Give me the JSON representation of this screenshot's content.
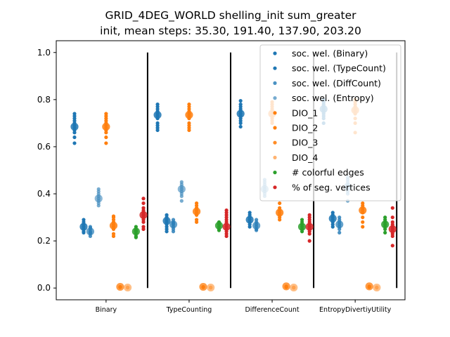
{
  "chart_data": {
    "type": "scatter",
    "title": "GRID_4DEG_WORLD shelling_init sum_greater",
    "subtitle": "init, mean steps: 35.30, 191.40, 137.90, 203.20",
    "xlabel": "",
    "ylabel": "",
    "ylim": [
      0,
      1
    ],
    "yticks": [
      "0.0",
      "0.2",
      "0.4",
      "0.6",
      "0.8",
      "1.0"
    ],
    "grid": false,
    "legend_position": "top-right",
    "categories": [
      "Binary",
      "TypeCounting",
      "DifferenceCount",
      "EntropyDivertiyUtility"
    ],
    "separators_x": [
      1.5,
      2.5,
      3.5,
      4.5
    ],
    "series": [
      {
        "name": "soc. wel. (Binary)",
        "color": "#1f77b4",
        "alpha": 1.0,
        "groups": [
          {
            "x": 1,
            "offset": -0.38,
            "mean": 0.685,
            "points": [
              0.74,
              0.73,
              0.72,
              0.71,
              0.7,
              0.69,
              0.68,
              0.67,
              0.66,
              0.64,
              0.615
            ]
          },
          {
            "x": 2,
            "offset": -0.38,
            "mean": 0.735,
            "points": [
              0.78,
              0.77,
              0.76,
              0.75,
              0.74,
              0.73,
              0.72,
              0.7,
              0.69,
              0.68,
              0.67
            ]
          },
          {
            "x": 3,
            "offset": -0.38,
            "mean": 0.74,
            "points": [
              0.795,
              0.78,
              0.77,
              0.76,
              0.75,
              0.74,
              0.73,
              0.72,
              0.71,
              0.7,
              0.685
            ]
          },
          {
            "x": 4,
            "offset": -0.38,
            "mean": 0.76,
            "points": [
              0.8,
              0.79,
              0.78,
              0.77,
              0.76,
              0.75,
              0.74,
              0.73,
              0.72,
              0.7
            ]
          }
        ]
      },
      {
        "name": "soc. wel. (TypeCount)",
        "color": "#1f77b4",
        "alpha": 1.0,
        "groups": [
          {
            "x": 1,
            "offset": -0.27,
            "mean": 0.26,
            "points": [
              0.29,
              0.28,
              0.27,
              0.26,
              0.25,
              0.24,
              0.235
            ]
          },
          {
            "x": 2,
            "offset": -0.27,
            "mean": 0.285,
            "points": [
              0.31,
              0.3,
              0.29,
              0.28,
              0.27,
              0.26,
              0.25,
              0.24
            ]
          },
          {
            "x": 3,
            "offset": -0.27,
            "mean": 0.29,
            "points": [
              0.32,
              0.31,
              0.3,
              0.29,
              0.28,
              0.27,
              0.26
            ]
          },
          {
            "x": 4,
            "offset": -0.27,
            "mean": 0.295,
            "points": [
              0.32,
              0.31,
              0.3,
              0.29,
              0.28,
              0.27,
              0.26
            ]
          }
        ]
      },
      {
        "name": "soc. wel. (DiffCount)",
        "color": "#2b7fb8",
        "alpha": 0.85,
        "groups": [
          {
            "x": 1,
            "offset": -0.19,
            "mean": 0.24,
            "points": [
              0.26,
              0.255,
              0.25,
              0.24,
              0.235,
              0.23,
              0.22
            ]
          },
          {
            "x": 2,
            "offset": -0.19,
            "mean": 0.27,
            "points": [
              0.29,
              0.28,
              0.275,
              0.27,
              0.26,
              0.25,
              0.24
            ]
          },
          {
            "x": 3,
            "offset": -0.19,
            "mean": 0.265,
            "points": [
              0.29,
              0.28,
              0.27,
              0.26,
              0.25,
              0.245
            ]
          },
          {
            "x": 4,
            "offset": -0.19,
            "mean": 0.27,
            "points": [
              0.3,
              0.29,
              0.28,
              0.27,
              0.26,
              0.25,
              0.235
            ]
          }
        ]
      },
      {
        "name": "soc. wel. (Entropy)",
        "color": "#4a90c0",
        "alpha": 0.75,
        "groups": [
          {
            "x": 1,
            "offset": -0.09,
            "mean": 0.38,
            "points": [
              0.42,
              0.41,
              0.4,
              0.39,
              0.38,
              0.37,
              0.36,
              0.35
            ]
          },
          {
            "x": 2,
            "offset": -0.09,
            "mean": 0.42,
            "points": [
              0.45,
              0.44,
              0.43,
              0.42,
              0.41,
              0.4,
              0.39,
              0.37
            ]
          },
          {
            "x": 3,
            "offset": -0.09,
            "mean": 0.42,
            "points": [
              0.46,
              0.45,
              0.44,
              0.43,
              0.42,
              0.41,
              0.4,
              0.39
            ]
          },
          {
            "x": 4,
            "offset": -0.09,
            "mean": 0.43,
            "points": [
              0.47,
              0.46,
              0.45,
              0.44,
              0.43,
              0.42,
              0.41,
              0.4,
              0.37
            ]
          }
        ]
      },
      {
        "name": "DIO_1",
        "color": "#ff7f0e",
        "alpha": 1.0,
        "groups": [
          {
            "x": 1,
            "offset": 0.0,
            "mean": 0.685,
            "points": [
              0.74,
              0.73,
              0.72,
              0.71,
              0.7,
              0.69,
              0.68,
              0.67,
              0.66,
              0.64,
              0.615
            ]
          },
          {
            "x": 2,
            "offset": 0.0,
            "mean": 0.735,
            "points": [
              0.78,
              0.77,
              0.76,
              0.75,
              0.74,
              0.73,
              0.72,
              0.7,
              0.69,
              0.68,
              0.67
            ]
          },
          {
            "x": 3,
            "offset": 0.0,
            "mean": 0.74,
            "points": [
              0.79,
              0.78,
              0.77,
              0.76,
              0.75,
              0.74,
              0.73,
              0.72,
              0.71,
              0.7
            ]
          },
          {
            "x": 4,
            "offset": 0.0,
            "mean": 0.755,
            "points": [
              0.8,
              0.79,
              0.78,
              0.77,
              0.76,
              0.75,
              0.74,
              0.72,
              0.7,
              0.66
            ]
          }
        ]
      },
      {
        "name": "DIO_2",
        "color": "#ff7f0e",
        "alpha": 1.0,
        "groups": [
          {
            "x": 1,
            "offset": 0.09,
            "mean": 0.265,
            "points": [
              0.305,
              0.3,
              0.29,
              0.28,
              0.27,
              0.26,
              0.25,
              0.23,
              0.22
            ]
          },
          {
            "x": 2,
            "offset": 0.09,
            "mean": 0.325,
            "points": [
              0.36,
              0.35,
              0.34,
              0.33,
              0.32,
              0.31,
              0.29,
              0.28
            ]
          },
          {
            "x": 3,
            "offset": 0.09,
            "mean": 0.32,
            "points": [
              0.36,
              0.34,
              0.33,
              0.32,
              0.31,
              0.3,
              0.29
            ]
          },
          {
            "x": 4,
            "offset": 0.09,
            "mean": 0.33,
            "points": [
              0.36,
              0.35,
              0.34,
              0.33,
              0.32,
              0.3,
              0.28,
              0.26
            ]
          }
        ]
      },
      {
        "name": "DIO_3",
        "color": "#ff7f0e",
        "alpha": 0.9,
        "groups": [
          {
            "x": 1,
            "offset": 0.17,
            "mean": 0.005,
            "points": [
              0.005,
              0.004,
              0.003
            ]
          },
          {
            "x": 2,
            "offset": 0.17,
            "mean": 0.005,
            "points": [
              0.005,
              0.004,
              0.003
            ]
          },
          {
            "x": 3,
            "offset": 0.17,
            "mean": 0.007,
            "points": [
              0.007,
              0.005,
              0.003
            ]
          },
          {
            "x": 4,
            "offset": 0.17,
            "mean": 0.007,
            "points": [
              0.007,
              0.005,
              0.003
            ]
          }
        ]
      },
      {
        "name": "DIO_4",
        "color": "#ffa04d",
        "alpha": 0.8,
        "groups": [
          {
            "x": 1,
            "offset": 0.26,
            "mean": 0.002,
            "points": [
              0.003,
              0.002,
              0.001
            ]
          },
          {
            "x": 2,
            "offset": 0.26,
            "mean": 0.002,
            "points": [
              0.003,
              0.002,
              0.001
            ]
          },
          {
            "x": 3,
            "offset": 0.26,
            "mean": 0.002,
            "points": [
              0.003,
              0.002,
              0.001
            ]
          },
          {
            "x": 4,
            "offset": 0.26,
            "mean": 0.002,
            "points": [
              0.003,
              0.002,
              0.001
            ]
          }
        ]
      },
      {
        "name": "# colorful edges",
        "color": "#2ca02c",
        "alpha": 1.0,
        "groups": [
          {
            "x": 1,
            "offset": 0.36,
            "mean": 0.24,
            "points": [
              0.26,
              0.25,
              0.245,
              0.24,
              0.23,
              0.22,
              0.215
            ]
          },
          {
            "x": 2,
            "offset": 0.36,
            "mean": 0.265,
            "points": [
              0.28,
              0.275,
              0.27,
              0.26,
              0.25,
              0.245
            ]
          },
          {
            "x": 3,
            "offset": 0.36,
            "mean": 0.26,
            "points": [
              0.29,
              0.28,
              0.27,
              0.26,
              0.25,
              0.24
            ]
          },
          {
            "x": 4,
            "offset": 0.36,
            "mean": 0.27,
            "points": [
              0.3,
              0.29,
              0.28,
              0.27,
              0.26,
              0.25,
              0.235
            ]
          }
        ]
      },
      {
        "name": "% of seg. vertices",
        "color": "#d62728",
        "alpha": 1.0,
        "groups": [
          {
            "x": 1,
            "offset": 0.45,
            "mean": 0.31,
            "points": [
              0.38,
              0.36,
              0.34,
              0.33,
              0.32,
              0.31,
              0.3,
              0.29,
              0.28,
              0.26,
              0.25
            ]
          },
          {
            "x": 2,
            "offset": 0.45,
            "mean": 0.26,
            "points": [
              0.33,
              0.32,
              0.31,
              0.3,
              0.29,
              0.28,
              0.27,
              0.26,
              0.25,
              0.24,
              0.23,
              0.22
            ]
          },
          {
            "x": 3,
            "offset": 0.45,
            "mean": 0.26,
            "points": [
              0.31,
              0.3,
              0.29,
              0.28,
              0.27,
              0.26,
              0.25,
              0.24,
              0.23,
              0.2
            ]
          },
          {
            "x": 4,
            "offset": 0.45,
            "mean": 0.25,
            "points": [
              0.34,
              0.3,
              0.28,
              0.27,
              0.26,
              0.25,
              0.24,
              0.23,
              0.22,
              0.18
            ]
          }
        ]
      }
    ]
  }
}
